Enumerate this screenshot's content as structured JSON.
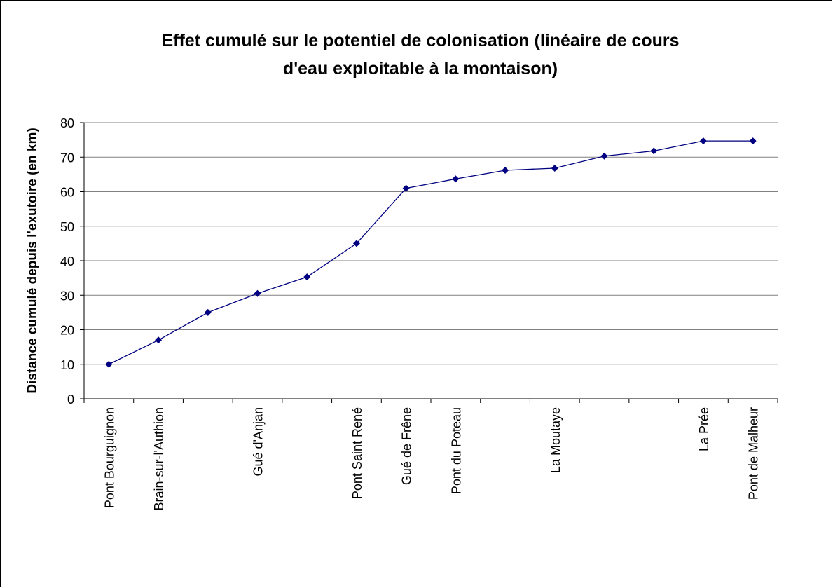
{
  "chart_data": {
    "type": "line",
    "title": [
      "Effet cumulé sur le potentiel de colonisation (linéaire de cours",
      "d'eau exploitable à la montaison)"
    ],
    "y_label": "Distance cumulé depuis l'exutoire (en km)",
    "categories": [
      "Pont Bourguignon",
      "Brain-sur-l'Authion",
      null,
      "Gué d'Anjan",
      null,
      "Pont Saint René",
      "Gué de Frêne",
      "Pont du Poteau",
      null,
      "La Moutaye",
      null,
      null,
      "La Prée",
      "Pont de Malheur"
    ],
    "values": [
      10,
      17,
      25,
      30.5,
      35.3,
      45,
      61,
      63.7,
      66.2,
      66.8,
      70.3,
      71.8,
      74.7,
      74.7
    ],
    "color": "#000080",
    "ylim": [
      0,
      80
    ],
    "yticks": [
      0,
      10,
      20,
      30,
      40,
      50,
      60,
      70,
      80
    ],
    "grid": true
  }
}
